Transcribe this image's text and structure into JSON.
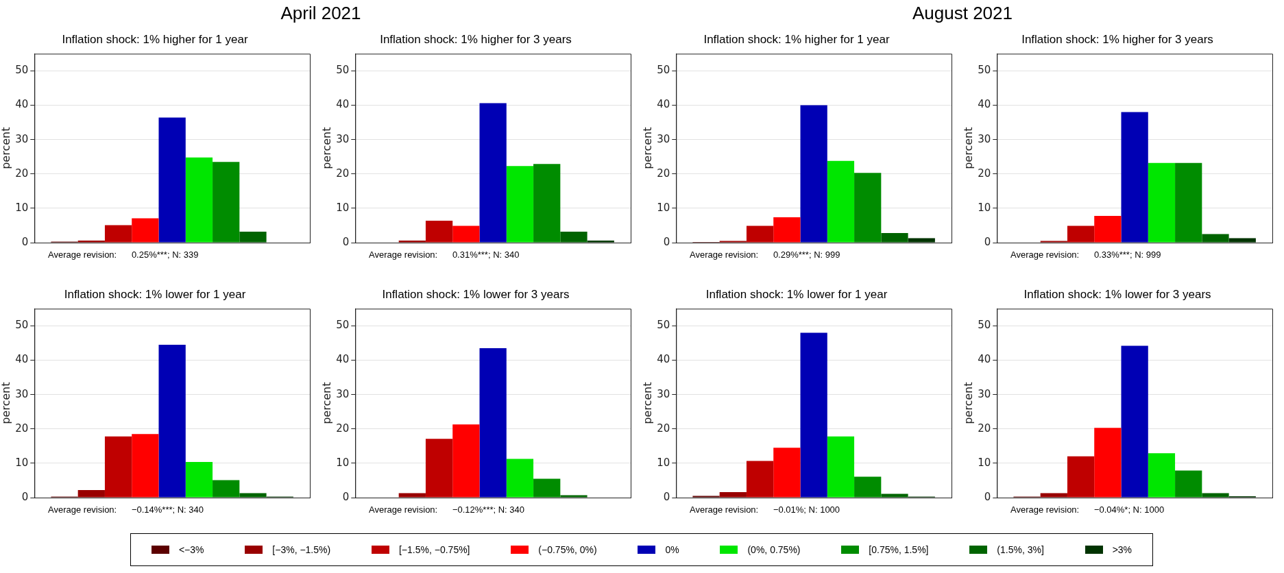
{
  "chart_data": [
    {
      "type": "bar",
      "title": "Inflation shock: 1% higher for 1 year",
      "ylabel": "percent",
      "categories": [
        null
      ],
      "ylim": [
        0,
        55
      ],
      "yticks": [
        0,
        10,
        20,
        30,
        40,
        50
      ],
      "grid": "y",
      "tick_labels": "y",
      "annotations": [
        "Average revision:      0.25%***; N: 339",
        "April 2021"
      ],
      "series": [
        {
          "color": "#5c0000",
          "values": [
            0.3
          ]
        },
        {
          "color": "#990000",
          "values": [
            0.6
          ]
        },
        {
          "color": "#bf0000",
          "values": [
            5.1
          ]
        },
        {
          "color": "#ff0000",
          "values": [
            7.1
          ]
        },
        {
          "color": "#0000b4",
          "values": [
            36.4
          ]
        },
        {
          "color": "#00e600",
          "values": [
            24.8
          ]
        },
        {
          "color": "#008c00",
          "values": [
            23.5
          ]
        },
        {
          "color": "#006400",
          "values": [
            3.2
          ]
        },
        {
          "color": "#003300",
          "values": [
            0
          ]
        }
      ]
    },
    {
      "type": "bar",
      "title": "Inflation shock: 1% higher for 3 years",
      "ylabel": "percent",
      "categories": [
        null
      ],
      "ylim": [
        0,
        55
      ],
      "yticks": [
        0,
        10,
        20,
        30,
        40,
        50
      ],
      "grid": "y",
      "tick_labels": "y",
      "annotations": [
        "Average revision:      0.31%***; N: 340"
      ],
      "series": [
        {
          "color": "#5c0000",
          "values": [
            0
          ]
        },
        {
          "color": "#990000",
          "values": [
            0.6
          ]
        },
        {
          "color": "#bf0000",
          "values": [
            6.4
          ]
        },
        {
          "color": "#ff0000",
          "values": [
            4.9
          ]
        },
        {
          "color": "#0000b4",
          "values": [
            40.6
          ]
        },
        {
          "color": "#00e600",
          "values": [
            22.3
          ]
        },
        {
          "color": "#008c00",
          "values": [
            22.9
          ]
        },
        {
          "color": "#006400",
          "values": [
            3.2
          ]
        },
        {
          "color": "#003300",
          "values": [
            0.6
          ]
        }
      ]
    },
    {
      "type": "bar",
      "title": "Inflation shock: 1% higher for 1 year",
      "ylabel": "percent",
      "categories": [
        null
      ],
      "ylim": [
        0,
        55
      ],
      "yticks": [
        0,
        10,
        20,
        30,
        40,
        50
      ],
      "grid": "y",
      "tick_labels": "y",
      "annotations": [
        "Average revision:      0.29%***; N: 999",
        "August 2021"
      ],
      "series": [
        {
          "color": "#5c0000",
          "values": [
            0.2
          ]
        },
        {
          "color": "#990000",
          "values": [
            0.5
          ]
        },
        {
          "color": "#bf0000",
          "values": [
            4.9
          ]
        },
        {
          "color": "#ff0000",
          "values": [
            7.4
          ]
        },
        {
          "color": "#0000b4",
          "values": [
            40.0
          ]
        },
        {
          "color": "#00e600",
          "values": [
            23.8
          ]
        },
        {
          "color": "#008c00",
          "values": [
            20.3
          ]
        },
        {
          "color": "#006400",
          "values": [
            2.8
          ]
        },
        {
          "color": "#003300",
          "values": [
            1.3
          ]
        }
      ]
    },
    {
      "type": "bar",
      "title": "Inflation shock: 1% higher for 3 years",
      "ylabel": "percent",
      "categories": [
        null
      ],
      "ylim": [
        0,
        55
      ],
      "yticks": [
        0,
        10,
        20,
        30,
        40,
        50
      ],
      "grid": "y",
      "tick_labels": "y",
      "annotations": [
        "Average revision:      0.33%***; N: 999"
      ],
      "series": [
        {
          "color": "#5c0000",
          "values": [
            0
          ]
        },
        {
          "color": "#990000",
          "values": [
            0.5
          ]
        },
        {
          "color": "#bf0000",
          "values": [
            4.9
          ]
        },
        {
          "color": "#ff0000",
          "values": [
            7.8
          ]
        },
        {
          "color": "#0000b4",
          "values": [
            38.0
          ]
        },
        {
          "color": "#00e600",
          "values": [
            23.2
          ]
        },
        {
          "color": "#008c00",
          "values": [
            23.2
          ]
        },
        {
          "color": "#006400",
          "values": [
            2.5
          ]
        },
        {
          "color": "#003300",
          "values": [
            1.3
          ]
        }
      ]
    },
    {
      "type": "bar",
      "title": "Inflation shock: 1% lower for 1 year",
      "ylabel": "percent",
      "categories": [
        null
      ],
      "ylim": [
        0,
        55
      ],
      "yticks": [
        0,
        10,
        20,
        30,
        40,
        50
      ],
      "grid": "y",
      "tick_labels": "y",
      "annotations": [
        "Average revision:      −0.14%***; N: 340"
      ],
      "series": [
        {
          "color": "#5c0000",
          "values": [
            0.3
          ]
        },
        {
          "color": "#990000",
          "values": [
            2.2
          ]
        },
        {
          "color": "#bf0000",
          "values": [
            17.8
          ]
        },
        {
          "color": "#ff0000",
          "values": [
            18.5
          ]
        },
        {
          "color": "#0000b4",
          "values": [
            44.5
          ]
        },
        {
          "color": "#00e600",
          "values": [
            10.4
          ]
        },
        {
          "color": "#008c00",
          "values": [
            5.1
          ]
        },
        {
          "color": "#006400",
          "values": [
            1.3
          ]
        },
        {
          "color": "#003300",
          "values": [
            0.3
          ]
        }
      ]
    },
    {
      "type": "bar",
      "title": "Inflation shock: 1% lower for 3 years",
      "ylabel": "percent",
      "categories": [
        null
      ],
      "ylim": [
        0,
        55
      ],
      "yticks": [
        0,
        10,
        20,
        30,
        40,
        50
      ],
      "grid": "y",
      "tick_labels": "y",
      "annotations": [
        "Average revision:      −0.12%***; N: 340"
      ],
      "series": [
        {
          "color": "#5c0000",
          "values": [
            0
          ]
        },
        {
          "color": "#990000",
          "values": [
            1.3
          ]
        },
        {
          "color": "#bf0000",
          "values": [
            17.1
          ]
        },
        {
          "color": "#ff0000",
          "values": [
            21.3
          ]
        },
        {
          "color": "#0000b4",
          "values": [
            43.5
          ]
        },
        {
          "color": "#00e600",
          "values": [
            11.3
          ]
        },
        {
          "color": "#008c00",
          "values": [
            5.5
          ]
        },
        {
          "color": "#006400",
          "values": [
            0.7
          ]
        },
        {
          "color": "#003300",
          "values": [
            0
          ]
        }
      ]
    },
    {
      "type": "bar",
      "title": "Inflation shock: 1% lower for 1 year",
      "ylabel": "percent",
      "categories": [
        null
      ],
      "ylim": [
        0,
        55
      ],
      "yticks": [
        0,
        10,
        20,
        30,
        40,
        50
      ],
      "grid": "y",
      "tick_labels": "y",
      "annotations": [
        "Average revision:      −0.01%; N: 1000"
      ],
      "series": [
        {
          "color": "#5c0000",
          "values": [
            0.5
          ]
        },
        {
          "color": "#990000",
          "values": [
            1.6
          ]
        },
        {
          "color": "#bf0000",
          "values": [
            10.7
          ]
        },
        {
          "color": "#ff0000",
          "values": [
            14.5
          ]
        },
        {
          "color": "#0000b4",
          "values": [
            48.0
          ]
        },
        {
          "color": "#00e600",
          "values": [
            17.8
          ]
        },
        {
          "color": "#008c00",
          "values": [
            6.1
          ]
        },
        {
          "color": "#006400",
          "values": [
            1.1
          ]
        },
        {
          "color": "#003300",
          "values": [
            0.3
          ]
        }
      ]
    },
    {
      "type": "bar",
      "title": "Inflation shock: 1% lower for 3 years",
      "ylabel": "percent",
      "categories": [
        null
      ],
      "ylim": [
        0,
        55
      ],
      "yticks": [
        0,
        10,
        20,
        30,
        40,
        50
      ],
      "grid": "y",
      "tick_labels": "y",
      "legend": "bottom",
      "annotations": [
        "Average revision:      −0.04%*; N: 1000"
      ],
      "series": [
        {
          "name": "<−3%",
          "color": "#5c0000",
          "values": [
            0.3
          ]
        },
        {
          "name": "[−3%, −1.5%)",
          "color": "#990000",
          "values": [
            1.3
          ]
        },
        {
          "name": "[−1.5%, −0.75%]",
          "color": "#bf0000",
          "values": [
            12.0
          ]
        },
        {
          "name": "(−0.75%, 0%)",
          "color": "#ff0000",
          "values": [
            20.3
          ]
        },
        {
          "name": "0%",
          "color": "#0000b4",
          "values": [
            44.2
          ]
        },
        {
          "name": "(0%, 0.75%)",
          "color": "#00e600",
          "values": [
            12.9
          ]
        },
        {
          "name": "[0.75%, 1.5%]",
          "color": "#008c00",
          "values": [
            7.9
          ]
        },
        {
          "name": "(1.5%, 3%]",
          "color": "#006400",
          "values": [
            1.3
          ]
        },
        {
          "name": ">3%",
          "color": "#003300",
          "values": [
            0.4
          ]
        }
      ]
    }
  ]
}
